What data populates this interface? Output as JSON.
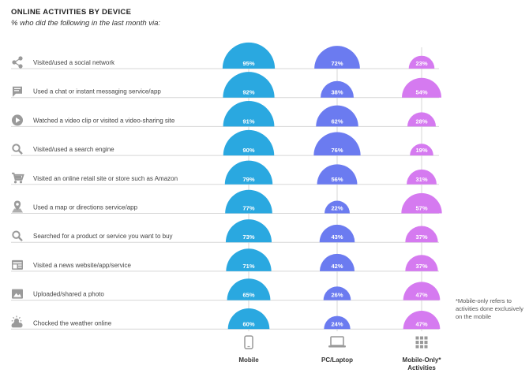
{
  "title": "ONLINE ACTIVITIES BY DEVICE",
  "subtitle": "% who did the following in the last month via:",
  "footnote": "*Mobile-only refers to activities done exclusively on the mobile",
  "colors": {
    "mobile": "#2aa8e0",
    "pc": "#6b7bf0",
    "mobile_only": "#d57af0",
    "line": "#d7d7d7",
    "icon": "#9a9a9a"
  },
  "chart_data": {
    "type": "bar",
    "title": "ONLINE ACTIVITIES BY DEVICE",
    "subtitle": "% who did the following in the last month via:",
    "categories": [
      "Visited/used a social network",
      "Used a chat or instant messaging service/app",
      "Watched a video clip or visited a video-sharing site",
      "Visited/used a search engine",
      "Visited an online retail site or store such as Amazon",
      "Used a map or directions service/app",
      "Searched for a product or service you want to buy",
      "Visited a news website/app/service",
      "Uploaded/shared a photo",
      "Chocked the weather online"
    ],
    "category_icons": [
      "share-icon",
      "chat-icon",
      "play-icon",
      "search-icon",
      "cart-icon",
      "map-pin-icon",
      "search-icon",
      "news-icon",
      "photo-icon",
      "weather-icon"
    ],
    "series": [
      {
        "name": "Mobile",
        "icon": "mobile-icon",
        "values": [
          95,
          92,
          91,
          90,
          79,
          77,
          73,
          71,
          65,
          60
        ]
      },
      {
        "name": "PC/Laptop",
        "icon": "laptop-icon",
        "values": [
          72,
          38,
          62,
          76,
          56,
          22,
          43,
          42,
          26,
          24
        ]
      },
      {
        "name": "Mobile-Only* Activities",
        "icon": "grid-icon",
        "values": [
          23,
          54,
          28,
          19,
          31,
          57,
          37,
          37,
          47,
          47
        ]
      }
    ],
    "value_suffix": "%",
    "ylim": [
      0,
      100
    ]
  }
}
